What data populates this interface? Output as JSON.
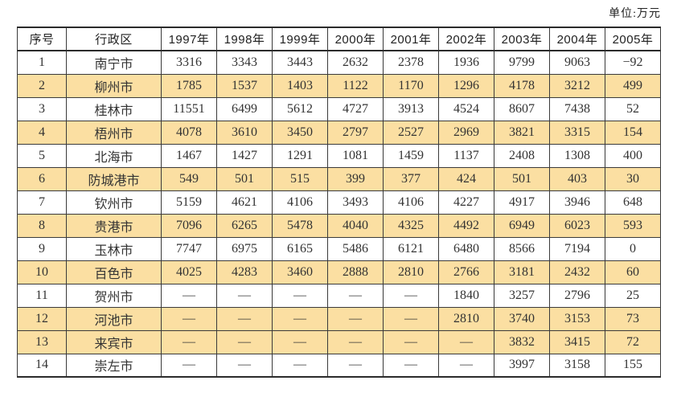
{
  "unit_label": "单位:万元",
  "table": {
    "columns": [
      "序号",
      "行政区",
      "1997年",
      "1998年",
      "1999年",
      "2000年",
      "2001年",
      "2002年",
      "2003年",
      "2004年",
      "2005年"
    ],
    "rows": [
      {
        "no": "1",
        "region": "南宁市",
        "values": [
          "3316",
          "3343",
          "3443",
          "2632",
          "2378",
          "1936",
          "9799",
          "9063",
          "−92"
        ],
        "highlight": false
      },
      {
        "no": "2",
        "region": "柳州市",
        "values": [
          "1785",
          "1537",
          "1403",
          "1122",
          "1170",
          "1296",
          "4178",
          "3212",
          "499"
        ],
        "highlight": true
      },
      {
        "no": "3",
        "region": "桂林市",
        "values": [
          "11551",
          "6499",
          "5612",
          "4727",
          "3913",
          "4524",
          "8607",
          "7438",
          "52"
        ],
        "highlight": false
      },
      {
        "no": "4",
        "region": "梧州市",
        "values": [
          "4078",
          "3610",
          "3450",
          "2797",
          "2527",
          "2969",
          "3821",
          "3315",
          "154"
        ],
        "highlight": true
      },
      {
        "no": "5",
        "region": "北海市",
        "values": [
          "1467",
          "1427",
          "1291",
          "1081",
          "1459",
          "1137",
          "2408",
          "1308",
          "400"
        ],
        "highlight": false
      },
      {
        "no": "6",
        "region": "防城港市",
        "values": [
          "549",
          "501",
          "515",
          "399",
          "377",
          "424",
          "501",
          "403",
          "30"
        ],
        "highlight": true
      },
      {
        "no": "7",
        "region": "钦州市",
        "values": [
          "5159",
          "4621",
          "4106",
          "3493",
          "4106",
          "4227",
          "4917",
          "3946",
          "648"
        ],
        "highlight": false
      },
      {
        "no": "8",
        "region": "贵港市",
        "values": [
          "7096",
          "6265",
          "5478",
          "4040",
          "4325",
          "4492",
          "6949",
          "6023",
          "593"
        ],
        "highlight": true
      },
      {
        "no": "9",
        "region": "玉林市",
        "values": [
          "7747",
          "6975",
          "6165",
          "5486",
          "6121",
          "6480",
          "8566",
          "7194",
          "0"
        ],
        "highlight": false
      },
      {
        "no": "10",
        "region": "百色市",
        "values": [
          "4025",
          "4283",
          "3460",
          "2888",
          "2810",
          "2766",
          "3181",
          "2432",
          "60"
        ],
        "highlight": true
      },
      {
        "no": "11",
        "region": "贺州市",
        "values": [
          "—",
          "—",
          "—",
          "—",
          "—",
          "1840",
          "3257",
          "2796",
          "25"
        ],
        "highlight": false
      },
      {
        "no": "12",
        "region": "河池市",
        "values": [
          "—",
          "—",
          "—",
          "—",
          "—",
          "2810",
          "3740",
          "3153",
          "73"
        ],
        "highlight": true
      },
      {
        "no": "13",
        "region": "来宾市",
        "values": [
          "—",
          "—",
          "—",
          "—",
          "—",
          "—",
          "3832",
          "3415",
          "72"
        ],
        "highlight": true
      },
      {
        "no": "14",
        "region": "崇左市",
        "values": [
          "—",
          "—",
          "—",
          "—",
          "—",
          "—",
          "3997",
          "3158",
          "155"
        ],
        "highlight": false
      }
    ]
  },
  "colors": {
    "highlight_row": "#fbdfa2",
    "border": "#3a3a3a",
    "border_strong": "#2b2b2b",
    "text": "#333333"
  },
  "layout_hints": {
    "col_width_index": "61px",
    "col_width_region": "118px"
  }
}
